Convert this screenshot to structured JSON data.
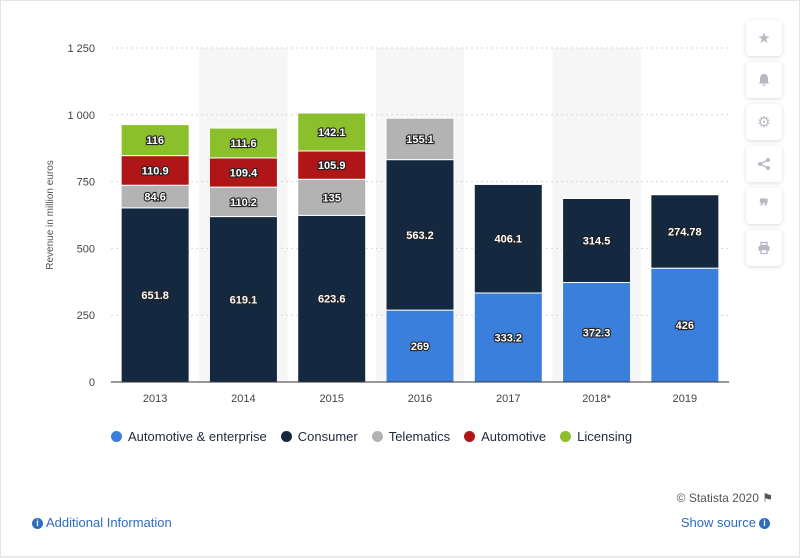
{
  "chart_data": {
    "type": "bar",
    "stacked": true,
    "categories": [
      "2013",
      "2014",
      "2015",
      "2016",
      "2017",
      "2018*",
      "2019"
    ],
    "series": [
      {
        "name": "Automotive & enterprise",
        "color": "#3a7fdc",
        "values": [
          null,
          null,
          null,
          269,
          333.2,
          372.3,
          426
        ],
        "labels": [
          "",
          "",
          "",
          "269",
          "333.2",
          "372.3",
          "426"
        ]
      },
      {
        "name": "Consumer",
        "color": "#142840",
        "values": [
          651.8,
          619.1,
          623.6,
          563.2,
          406.1,
          314.5,
          274.78
        ],
        "labels": [
          "651.8",
          "619.1",
          "623.6",
          "563.2",
          "406.1",
          "314.5",
          "274.78"
        ]
      },
      {
        "name": "Telematics",
        "color": "#b3b3b3",
        "values": [
          84.6,
          110.2,
          135,
          155.1,
          null,
          null,
          null
        ],
        "labels": [
          "84.6",
          "110.2",
          "135",
          "155.1",
          "",
          "",
          ""
        ]
      },
      {
        "name": "Automotive",
        "color": "#b01518",
        "values": [
          110.9,
          109.4,
          105.9,
          null,
          null,
          null,
          null
        ],
        "labels": [
          "110.9",
          "109.4",
          "105.9",
          "",
          "",
          "",
          ""
        ]
      },
      {
        "name": "Licensing",
        "color": "#8bbf2b",
        "values": [
          116,
          111.6,
          142.1,
          null,
          null,
          null,
          null
        ],
        "labels": [
          "116",
          "111.6",
          "142.1",
          "",
          "",
          "",
          ""
        ]
      }
    ],
    "ylabel": "Revenue in million euros",
    "ylim": [
      0,
      1250
    ],
    "yticks": [
      0,
      250,
      500,
      750,
      1000,
      1250
    ],
    "ytick_labels": [
      "0",
      "250",
      "500",
      "750",
      "1 000",
      "1 250"
    ],
    "grid": true,
    "legend_position": "bottom"
  },
  "legend": [
    {
      "label": "Automotive & enterprise",
      "color": "#3a7fdc"
    },
    {
      "label": "Consumer",
      "color": "#142840"
    },
    {
      "label": "Telematics",
      "color": "#b3b3b3"
    },
    {
      "label": "Automotive",
      "color": "#b01518"
    },
    {
      "label": "Licensing",
      "color": "#8bbf2b"
    }
  ],
  "sidebar_icons": [
    "star-icon",
    "bell-icon",
    "gear-icon",
    "share-icon",
    "quote-icon",
    "print-icon"
  ],
  "footer": {
    "credit": "© Statista 2020",
    "additional_info": "Additional Information",
    "show_source": "Show source"
  }
}
